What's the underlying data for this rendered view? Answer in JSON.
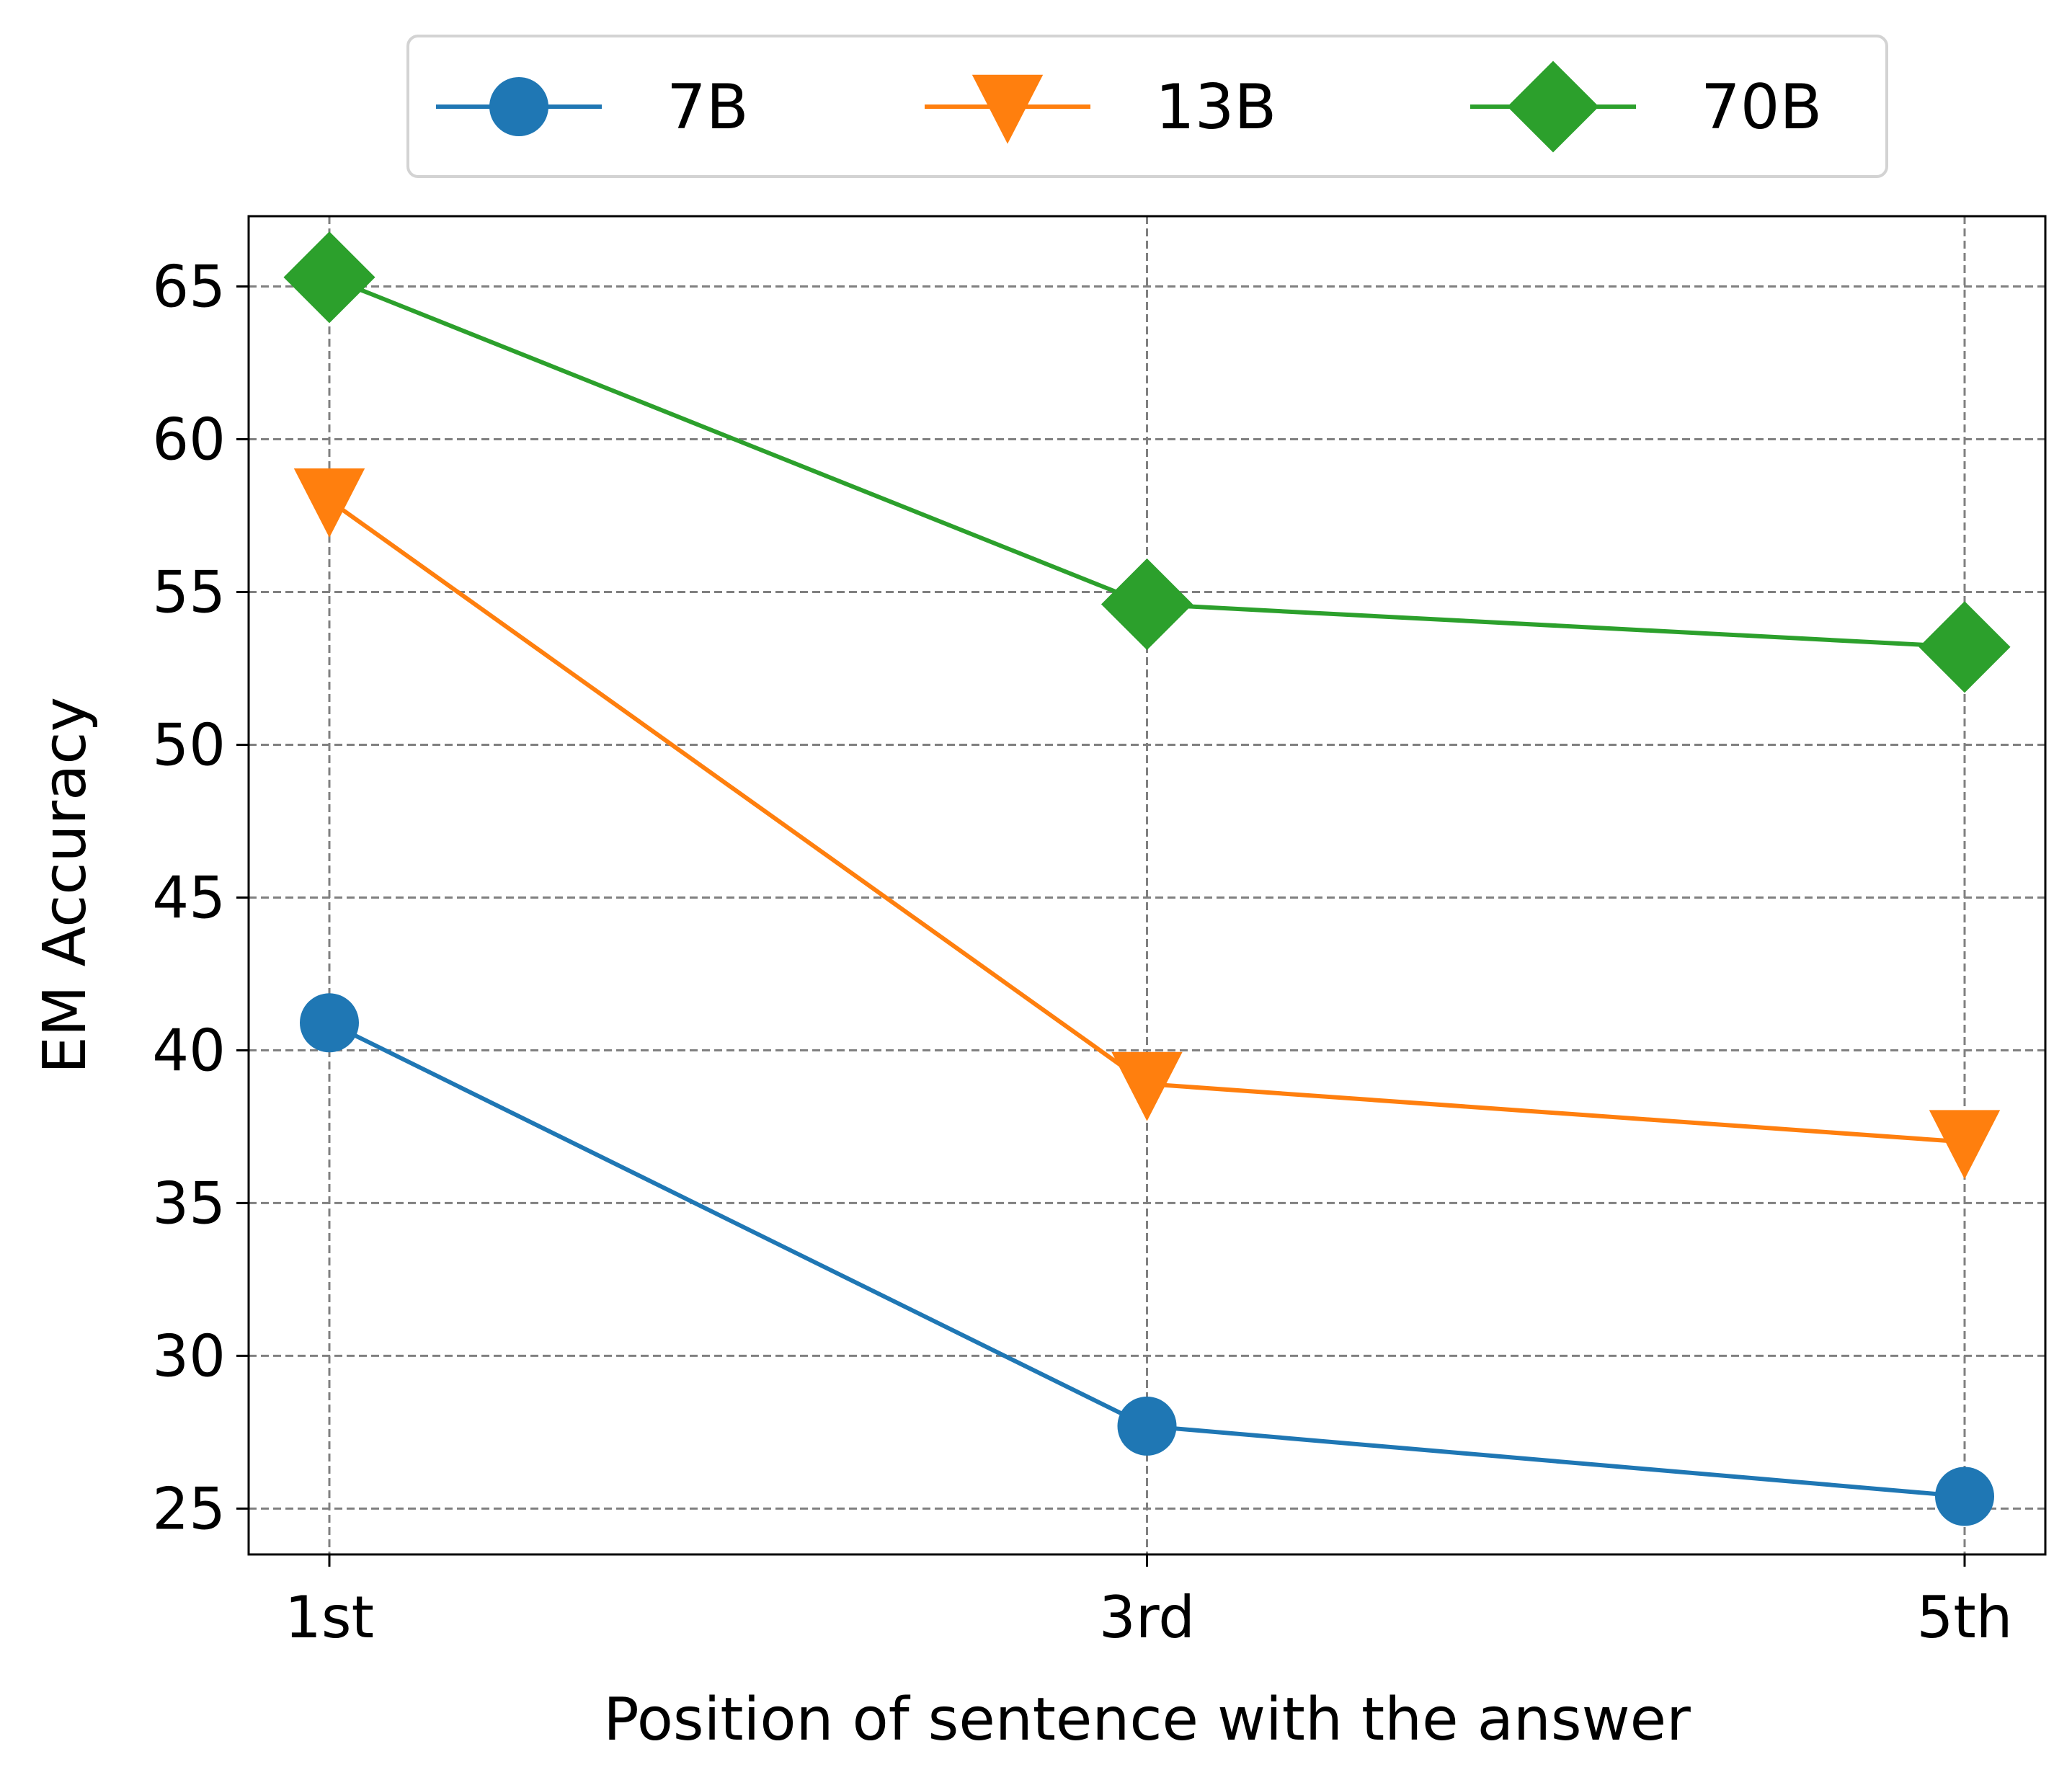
{
  "chart_data": {
    "type": "line",
    "x": [
      "1st",
      "3rd",
      "5th"
    ],
    "xlabel": "Position of sentence with the answer",
    "ylabel": "EM Accuracy",
    "ylim": [
      23.5,
      67.3
    ],
    "yticks": [
      25,
      30,
      35,
      40,
      45,
      50,
      55,
      60,
      65
    ],
    "grid": true,
    "legend": "top-center",
    "series": [
      {
        "name": "7B",
        "values": [
          40.9,
          27.7,
          25.4
        ],
        "color": "#1f77b4",
        "marker": "circle"
      },
      {
        "name": "13B",
        "values": [
          58.0,
          38.9,
          37.0
        ],
        "color": "#ff7f0e",
        "marker": "triangle-down"
      },
      {
        "name": "70B",
        "values": [
          65.3,
          54.6,
          53.2
        ],
        "color": "#2ca02c",
        "marker": "diamond"
      }
    ]
  }
}
